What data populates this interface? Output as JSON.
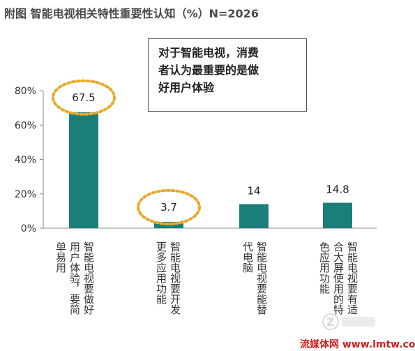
{
  "title": "附图  智能电视相关特性重要性认知（%）N=2026",
  "callout": {
    "lines": [
      "对于智能电视，消费",
      "者认为最重要的是做",
      "好用户体验"
    ]
  },
  "chart_data": {
    "type": "bar",
    "categories": [
      "智能电视要做好用户体验，要简单易用",
      "智能电视要开发更多应用功能",
      "智能电视要能替代电脑",
      "智能电视要有适合大屏使用的特色应用功能"
    ],
    "values": [
      67.5,
      3.7,
      14,
      14.8
    ],
    "data_labels": [
      "67.5",
      "3.7",
      "14",
      "14.8"
    ],
    "highlighted": [
      true,
      true,
      false,
      false
    ],
    "ylim": [
      0,
      80
    ],
    "yticks": [
      "0%",
      "20%",
      "40%",
      "60%",
      "80%"
    ],
    "bar_color": "#1b7f79",
    "highlight_color": "#e8a92a",
    "grid": false,
    "legend": "none"
  },
  "category_lines": [
    [
      "智能电视要做好",
      "用户体验，要简",
      "单易用"
    ],
    [
      "智能电视要开发",
      "更多应用功能"
    ],
    [
      "智能电视要能替",
      "代电脑"
    ],
    [
      "智能电视要有适",
      "合大屏使用的特",
      "色应用功能"
    ]
  ],
  "watermark": "流媒体网 www.lmtw.com"
}
